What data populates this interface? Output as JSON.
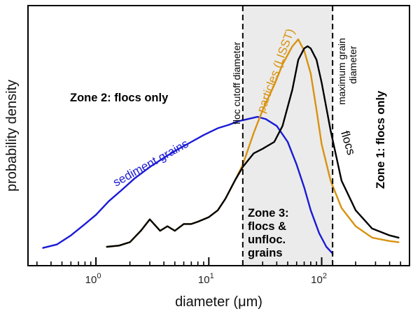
{
  "chart_data": {
    "type": "line",
    "xscale": "log",
    "xlim": [
      0.25,
      600
    ],
    "ylim": [
      0,
      1
    ],
    "xlabel": "diameter (μm)",
    "ylabel": "probability density",
    "x_ticks": [
      {
        "value": 1,
        "base": "10",
        "exp": "0"
      },
      {
        "value": 10,
        "base": "10",
        "exp": "1"
      },
      {
        "value": 100,
        "base": "10",
        "exp": "2"
      }
    ],
    "colors": {
      "sediment": "#1a1ad6",
      "particles": "#d9920f",
      "flocs": "#000000",
      "shade": "#ebebeb"
    },
    "shaded_region": [
      20,
      125
    ],
    "vlines": [
      {
        "x": 20,
        "label": "floc cutoff diameter"
      },
      {
        "x": 125,
        "label": "maximum grain diameter"
      }
    ],
    "zones": [
      {
        "text": "Zone 2: flocs only"
      },
      {
        "text": "Zone 1: flocs only"
      },
      {
        "lines": [
          "Zone 3:",
          "flocs &",
          "unfloc.",
          "grains"
        ]
      }
    ],
    "series": [
      {
        "name": "sediment grains",
        "key": "sediment",
        "x": [
          0.34,
          0.45,
          0.6,
          0.8,
          1.0,
          1.3,
          1.7,
          2.2,
          3,
          4,
          5,
          7,
          9,
          12,
          15,
          18,
          22,
          27,
          32,
          40,
          50,
          60,
          70,
          80,
          95,
          110,
          125
        ],
        "y": [
          0.035,
          0.05,
          0.09,
          0.14,
          0.18,
          0.24,
          0.29,
          0.34,
          0.39,
          0.43,
          0.46,
          0.5,
          0.53,
          0.56,
          0.575,
          0.59,
          0.6,
          0.61,
          0.6,
          0.57,
          0.5,
          0.4,
          0.3,
          0.2,
          0.1,
          0.04,
          0.01
        ]
      },
      {
        "name": "particles (LISST)",
        "key": "particles",
        "x": [
          1.25,
          1.6,
          2.0,
          2.5,
          3.0,
          3.7,
          4.3,
          5,
          6,
          7,
          8,
          10,
          12,
          14,
          17,
          20,
          25,
          30,
          38,
          45,
          55,
          62,
          70,
          80,
          90,
          100,
          120,
          150,
          200,
          280,
          400,
          480
        ],
        "y": [
          0.04,
          0.045,
          0.06,
          0.11,
          0.16,
          0.11,
          0.13,
          0.11,
          0.14,
          0.14,
          0.15,
          0.17,
          0.2,
          0.25,
          0.33,
          0.4,
          0.54,
          0.64,
          0.75,
          0.84,
          0.92,
          0.95,
          0.9,
          0.8,
          0.64,
          0.49,
          0.33,
          0.21,
          0.13,
          0.08,
          0.065,
          0.06
        ]
      },
      {
        "name": "flocs",
        "key": "flocs",
        "x": [
          1.25,
          1.6,
          2.0,
          2.5,
          3.0,
          3.7,
          4.3,
          5,
          6,
          7,
          8,
          10,
          12,
          14,
          17,
          20,
          25,
          30,
          38,
          45,
          55,
          62,
          70,
          75,
          80,
          90,
          100,
          120,
          150,
          200,
          280,
          400,
          480
        ],
        "y": [
          0.04,
          0.045,
          0.06,
          0.11,
          0.16,
          0.11,
          0.13,
          0.11,
          0.14,
          0.14,
          0.15,
          0.17,
          0.2,
          0.25,
          0.33,
          0.39,
          0.45,
          0.47,
          0.5,
          0.57,
          0.73,
          0.86,
          0.91,
          0.92,
          0.91,
          0.86,
          0.76,
          0.55,
          0.33,
          0.2,
          0.12,
          0.09,
          0.08
        ]
      }
    ]
  }
}
